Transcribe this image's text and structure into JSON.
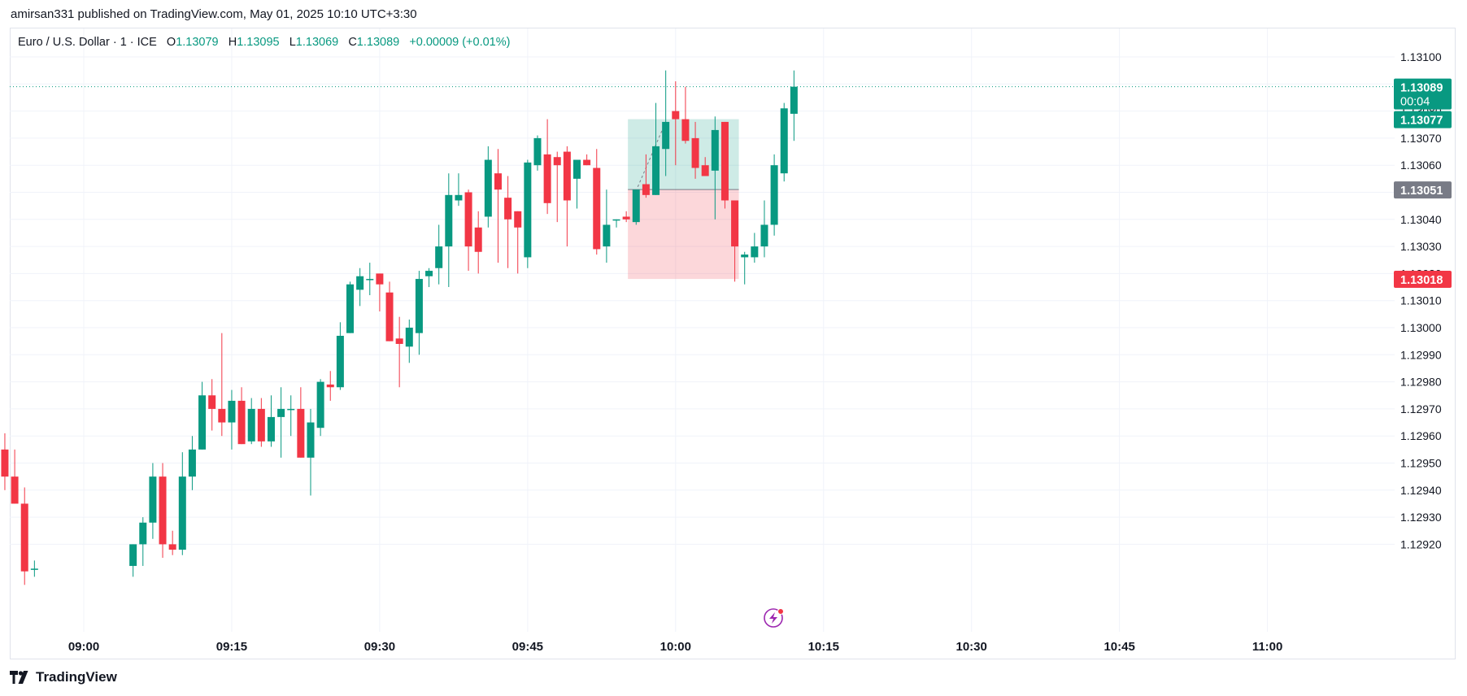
{
  "header": {
    "publish_line": "amirsan331 published on TradingView.com, May 01, 2025 10:10 UTC+3:30"
  },
  "legend": {
    "symbol": "Euro / U.S. Dollar · 1 · ICE",
    "open_label": "O",
    "open": "1.13079",
    "high_label": "H",
    "high": "1.13095",
    "low_label": "L",
    "low": "1.13069",
    "close_label": "C",
    "close": "1.13089",
    "change": "+0.00009 (+0.01%)"
  },
  "footer": {
    "brand": "TradingView",
    "logo_icon": "tradingview-logo-icon"
  },
  "colors": {
    "up": "#089981",
    "down": "#f23645",
    "neutral": "#787b86",
    "grid": "#f0f3fa"
  },
  "chart_data": {
    "type": "candlestick",
    "y_axis": {
      "min": 1.1291,
      "max": 1.1311,
      "ticks": [
        "1.13100",
        "1.13090",
        "1.13080",
        "1.13070",
        "1.13060",
        "1.13050",
        "1.13040",
        "1.13030",
        "1.13020",
        "1.13010",
        "1.13000",
        "1.12990",
        "1.12980",
        "1.12970",
        "1.12960",
        "1.12950",
        "1.12940",
        "1.12930",
        "1.12920"
      ]
    },
    "x_axis": {
      "ticks": [
        "09:00",
        "09:15",
        "09:30",
        "09:45",
        "10:00",
        "10:15",
        "10:30",
        "10:45",
        "11:00"
      ]
    },
    "candles": [
      {
        "t": "08:52",
        "o": 1.12955,
        "h": 1.12961,
        "l": 1.1294,
        "c": 1.12945
      },
      {
        "t": "08:53",
        "o": 1.12945,
        "h": 1.12955,
        "l": 1.12935,
        "c": 1.12935
      },
      {
        "t": "08:54",
        "o": 1.12935,
        "h": 1.12941,
        "l": 1.12905,
        "c": 1.1291
      },
      {
        "t": "08:55",
        "o": 1.12911,
        "h": 1.12914,
        "l": 1.12908,
        "c": 1.12911
      },
      {
        "t": "09:05",
        "o": 1.12912,
        "h": 1.1292,
        "l": 1.12908,
        "c": 1.1292
      },
      {
        "t": "09:06",
        "o": 1.1292,
        "h": 1.1293,
        "l": 1.12912,
        "c": 1.12928
      },
      {
        "t": "09:07",
        "o": 1.12928,
        "h": 1.1295,
        "l": 1.12922,
        "c": 1.12945
      },
      {
        "t": "09:08",
        "o": 1.12945,
        "h": 1.1295,
        "l": 1.12915,
        "c": 1.1292
      },
      {
        "t": "09:09",
        "o": 1.1292,
        "h": 1.12925,
        "l": 1.12916,
        "c": 1.12918
      },
      {
        "t": "09:10",
        "o": 1.12918,
        "h": 1.12954,
        "l": 1.12916,
        "c": 1.12945
      },
      {
        "t": "09:11",
        "o": 1.12945,
        "h": 1.1296,
        "l": 1.1294,
        "c": 1.12955
      },
      {
        "t": "09:12",
        "o": 1.12955,
        "h": 1.1298,
        "l": 1.12955,
        "c": 1.12975
      },
      {
        "t": "09:13",
        "o": 1.12975,
        "h": 1.12981,
        "l": 1.12962,
        "c": 1.1297
      },
      {
        "t": "09:14",
        "o": 1.1297,
        "h": 1.12998,
        "l": 1.1296,
        "c": 1.12965
      },
      {
        "t": "09:15",
        "o": 1.12965,
        "h": 1.12977,
        "l": 1.12955,
        "c": 1.12973
      },
      {
        "t": "09:16",
        "o": 1.12973,
        "h": 1.12978,
        "l": 1.12957,
        "c": 1.12957
      },
      {
        "t": "09:17",
        "o": 1.12958,
        "h": 1.12974,
        "l": 1.12957,
        "c": 1.1297
      },
      {
        "t": "09:18",
        "o": 1.1297,
        "h": 1.12974,
        "l": 1.12956,
        "c": 1.12958
      },
      {
        "t": "09:19",
        "o": 1.12958,
        "h": 1.12975,
        "l": 1.12956,
        "c": 1.12967
      },
      {
        "t": "09:20",
        "o": 1.12967,
        "h": 1.12978,
        "l": 1.12952,
        "c": 1.1297
      },
      {
        "t": "09:21",
        "o": 1.1297,
        "h": 1.12975,
        "l": 1.1296,
        "c": 1.1297
      },
      {
        "t": "09:22",
        "o": 1.1297,
        "h": 1.12978,
        "l": 1.12952,
        "c": 1.12952
      },
      {
        "t": "09:23",
        "o": 1.12952,
        "h": 1.1297,
        "l": 1.12938,
        "c": 1.12965
      },
      {
        "t": "09:24",
        "o": 1.12963,
        "h": 1.12981,
        "l": 1.1296,
        "c": 1.1298
      },
      {
        "t": "09:25",
        "o": 1.12979,
        "h": 1.12984,
        "l": 1.12973,
        "c": 1.12978
      },
      {
        "t": "09:26",
        "o": 1.12978,
        "h": 1.13002,
        "l": 1.12977,
        "c": 1.12997
      },
      {
        "t": "09:27",
        "o": 1.12998,
        "h": 1.13017,
        "l": 1.12998,
        "c": 1.13016
      },
      {
        "t": "09:28",
        "o": 1.13014,
        "h": 1.13022,
        "l": 1.13008,
        "c": 1.13019
      },
      {
        "t": "09:29",
        "o": 1.13018,
        "h": 1.13024,
        "l": 1.13012,
        "c": 1.13018
      },
      {
        "t": "09:30",
        "o": 1.1302,
        "h": 1.1302,
        "l": 1.13006,
        "c": 1.13016
      },
      {
        "t": "09:31",
        "o": 1.13013,
        "h": 1.13017,
        "l": 1.12995,
        "c": 1.12995
      },
      {
        "t": "09:32",
        "o": 1.12996,
        "h": 1.13004,
        "l": 1.12978,
        "c": 1.12994
      },
      {
        "t": "09:33",
        "o": 1.12993,
        "h": 1.13003,
        "l": 1.12987,
        "c": 1.13
      },
      {
        "t": "09:34",
        "o": 1.12998,
        "h": 1.13021,
        "l": 1.1299,
        "c": 1.13018
      },
      {
        "t": "09:35",
        "o": 1.13019,
        "h": 1.13022,
        "l": 1.13015,
        "c": 1.13021
      },
      {
        "t": "09:36",
        "o": 1.13022,
        "h": 1.13038,
        "l": 1.13016,
        "c": 1.1303
      },
      {
        "t": "09:37",
        "o": 1.1303,
        "h": 1.13057,
        "l": 1.13015,
        "c": 1.13049
      },
      {
        "t": "09:38",
        "o": 1.13047,
        "h": 1.13057,
        "l": 1.13045,
        "c": 1.13049
      },
      {
        "t": "09:39",
        "o": 1.1305,
        "h": 1.13051,
        "l": 1.13021,
        "c": 1.1303
      },
      {
        "t": "09:40",
        "o": 1.13037,
        "h": 1.13043,
        "l": 1.1302,
        "c": 1.13028
      },
      {
        "t": "09:41",
        "o": 1.13041,
        "h": 1.13067,
        "l": 1.13037,
        "c": 1.13062
      },
      {
        "t": "09:42",
        "o": 1.13057,
        "h": 1.13066,
        "l": 1.13024,
        "c": 1.13051
      },
      {
        "t": "09:43",
        "o": 1.13048,
        "h": 1.13056,
        "l": 1.13022,
        "c": 1.1304
      },
      {
        "t": "09:44",
        "o": 1.13043,
        "h": 1.13043,
        "l": 1.1302,
        "c": 1.13037
      },
      {
        "t": "09:45",
        "o": 1.13026,
        "h": 1.13062,
        "l": 1.13022,
        "c": 1.13061
      },
      {
        "t": "09:46",
        "o": 1.1306,
        "h": 1.13071,
        "l": 1.13058,
        "c": 1.1307
      },
      {
        "t": "09:47",
        "o": 1.13064,
        "h": 1.13077,
        "l": 1.13042,
        "c": 1.13046
      },
      {
        "t": "09:48",
        "o": 1.13063,
        "h": 1.13065,
        "l": 1.13039,
        "c": 1.1306
      },
      {
        "t": "09:49",
        "o": 1.13065,
        "h": 1.13067,
        "l": 1.1303,
        "c": 1.13047
      },
      {
        "t": "09:50",
        "o": 1.13055,
        "h": 1.13061,
        "l": 1.13044,
        "c": 1.13062
      },
      {
        "t": "09:51",
        "o": 1.13062,
        "h": 1.13064,
        "l": 1.1306,
        "c": 1.1306
      },
      {
        "t": "09:52",
        "o": 1.13059,
        "h": 1.13066,
        "l": 1.13027,
        "c": 1.13029
      },
      {
        "t": "09:53",
        "o": 1.1303,
        "h": 1.13051,
        "l": 1.13024,
        "c": 1.13038
      },
      {
        "t": "09:54",
        "o": 1.1304,
        "h": 1.1304,
        "l": 1.13037,
        "c": 1.1304
      },
      {
        "t": "09:55",
        "o": 1.13041,
        "h": 1.13043,
        "l": 1.13039,
        "c": 1.1304
      },
      {
        "t": "09:56",
        "o": 1.13039,
        "h": 1.13049,
        "l": 1.13038,
        "c": 1.13051
      },
      {
        "t": "09:57",
        "o": 1.13053,
        "h": 1.13064,
        "l": 1.13048,
        "c": 1.13049
      },
      {
        "t": "09:58",
        "o": 1.13049,
        "h": 1.13083,
        "l": 1.13049,
        "c": 1.13067
      },
      {
        "t": "09:59",
        "o": 1.13066,
        "h": 1.13095,
        "l": 1.13056,
        "c": 1.13076
      },
      {
        "t": "10:00",
        "o": 1.1308,
        "h": 1.13091,
        "l": 1.1306,
        "c": 1.13077
      },
      {
        "t": "10:01",
        "o": 1.13077,
        "h": 1.13089,
        "l": 1.13068,
        "c": 1.13069
      },
      {
        "t": "10:02",
        "o": 1.1307,
        "h": 1.13076,
        "l": 1.13055,
        "c": 1.13059
      },
      {
        "t": "10:03",
        "o": 1.1306,
        "h": 1.13063,
        "l": 1.13057,
        "c": 1.13056
      },
      {
        "t": "10:04",
        "o": 1.13058,
        "h": 1.13078,
        "l": 1.1304,
        "c": 1.13073
      },
      {
        "t": "10:05",
        "o": 1.13076,
        "h": 1.13076,
        "l": 1.13044,
        "c": 1.13047
      },
      {
        "t": "10:06",
        "o": 1.13047,
        "h": 1.13047,
        "l": 1.13017,
        "c": 1.1303
      },
      {
        "t": "10:07",
        "o": 1.13026,
        "h": 1.13028,
        "l": 1.13016,
        "c": 1.13027
      },
      {
        "t": "10:08",
        "o": 1.13026,
        "h": 1.13035,
        "l": 1.13024,
        "c": 1.1303
      },
      {
        "t": "10:09",
        "o": 1.1303,
        "h": 1.13047,
        "l": 1.13026,
        "c": 1.13038
      },
      {
        "t": "10:10",
        "o": 1.13038,
        "h": 1.13064,
        "l": 1.13034,
        "c": 1.1306
      },
      {
        "t": "10:11",
        "o": 1.13057,
        "h": 1.13083,
        "l": 1.13054,
        "c": 1.13081
      },
      {
        "t": "10:12",
        "o": 1.13079,
        "h": 1.13095,
        "l": 1.13069,
        "c": 1.13089
      }
    ],
    "position": {
      "type": "long",
      "start": "09:55",
      "end": "10:06",
      "entry": 1.13051,
      "target": 1.13077,
      "stop": 1.13018
    },
    "price_tags": [
      {
        "value": "1.13089",
        "sub": "00:04",
        "kind": "current"
      },
      {
        "value": "1.13077",
        "kind": "target"
      },
      {
        "value": "1.13051",
        "kind": "entry"
      },
      {
        "value": "1.13018",
        "kind": "stop"
      }
    ],
    "grid": true
  }
}
